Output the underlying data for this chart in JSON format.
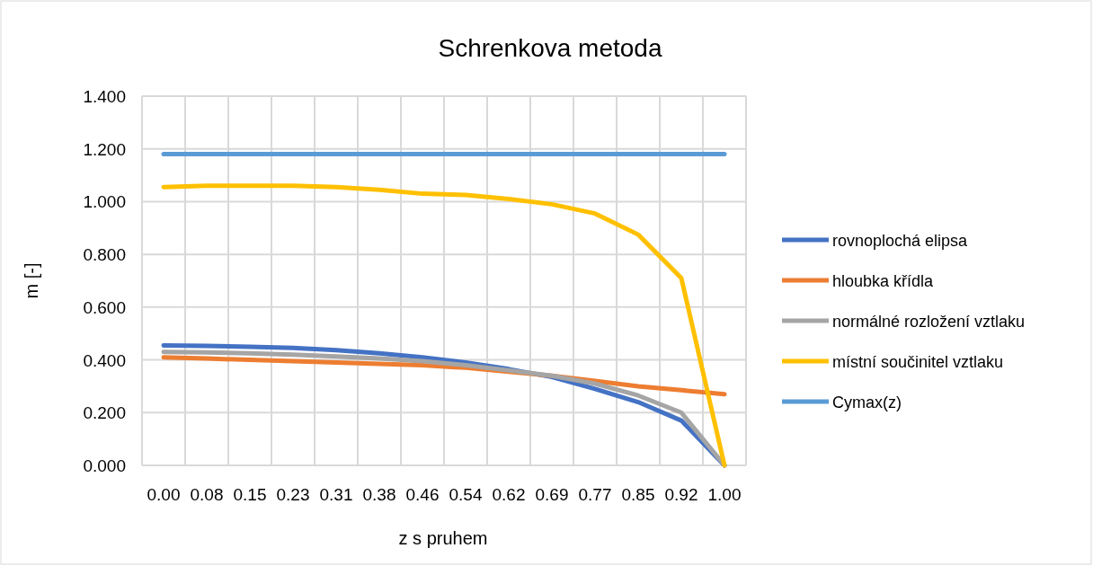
{
  "chart_data": {
    "type": "line",
    "title": "Schrenkova metoda",
    "xlabel": "z s pruhem",
    "ylabel": "m [-]",
    "categories": [
      "0.00",
      "0.08",
      "0.15",
      "0.23",
      "0.31",
      "0.38",
      "0.46",
      "0.54",
      "0.62",
      "0.69",
      "0.77",
      "0.85",
      "0.92",
      "1.00"
    ],
    "series": [
      {
        "name": "rovnoplochá elipsa",
        "color": "#4472c4",
        "values": [
          0.455,
          0.453,
          0.45,
          0.445,
          0.437,
          0.425,
          0.41,
          0.39,
          0.365,
          0.335,
          0.29,
          0.24,
          0.17,
          0
        ]
      },
      {
        "name": "hloubka křídla",
        "color": "#ed7d31",
        "values": [
          0.41,
          0.405,
          0.4,
          0.395,
          0.39,
          0.385,
          0.38,
          0.37,
          0.355,
          0.34,
          0.32,
          0.3,
          0.285,
          0.27
        ]
      },
      {
        "name": "normálné rozložení vztlaku",
        "color": "#a5a5a5",
        "values": [
          0.43,
          0.428,
          0.425,
          0.42,
          0.413,
          0.405,
          0.395,
          0.38,
          0.36,
          0.34,
          0.31,
          0.265,
          0.2,
          0
        ]
      },
      {
        "name": "místní součinitel vztlaku",
        "color": "#ffc000",
        "values": [
          1.055,
          1.06,
          1.06,
          1.06,
          1.055,
          1.045,
          1.03,
          1.025,
          1.01,
          0.99,
          0.955,
          0.875,
          0.71,
          0
        ]
      },
      {
        "name": "Cymax(z)",
        "color": "#5b9bd5",
        "values": [
          1.18,
          1.18,
          1.18,
          1.18,
          1.18,
          1.18,
          1.18,
          1.18,
          1.18,
          1.18,
          1.18,
          1.18,
          1.18,
          1.18
        ]
      }
    ],
    "ylim": [
      0,
      1.4
    ],
    "yticks": [
      {
        "value": 0,
        "label": "0.000"
      },
      {
        "value": 0.2,
        "label": "0.200"
      },
      {
        "value": 0.4,
        "label": "0.400"
      },
      {
        "value": 0.6,
        "label": "0.600"
      },
      {
        "value": 0.8,
        "label": "0.800"
      },
      {
        "value": 1,
        "label": "1.000"
      },
      {
        "value": 1.2,
        "label": "1.200"
      },
      {
        "value": 1.4,
        "label": "1.400"
      }
    ],
    "grid": true,
    "legend": "right",
    "marker": "none",
    "line_style": "solid"
  }
}
